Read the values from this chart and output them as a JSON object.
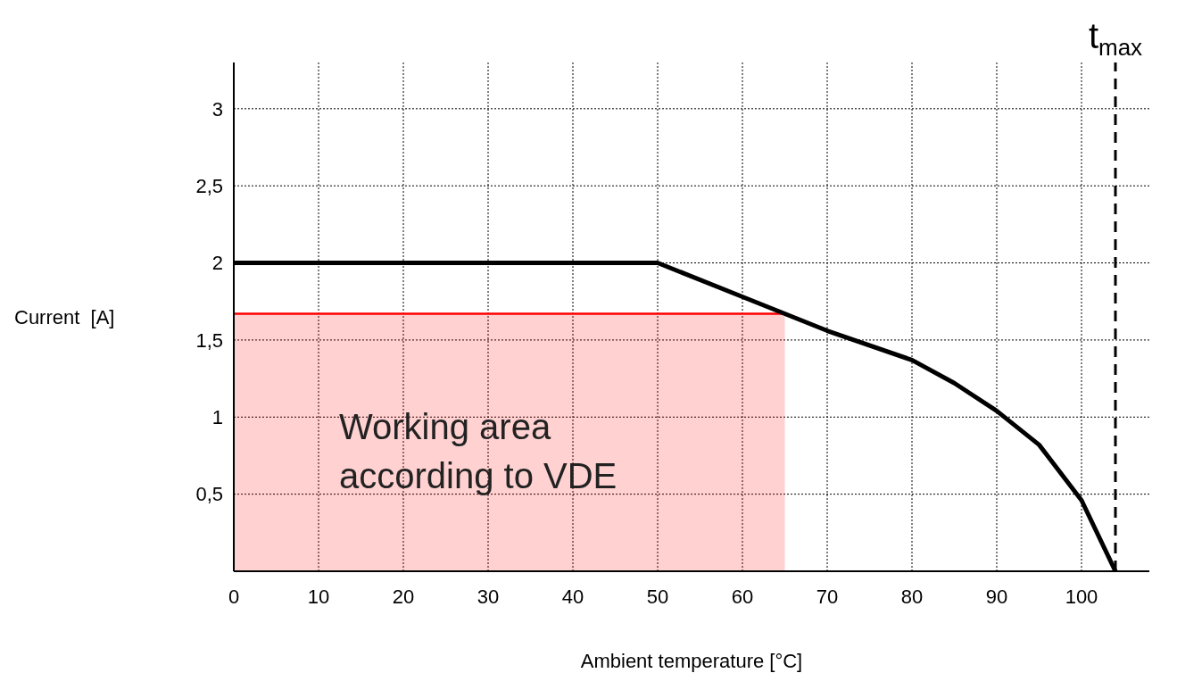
{
  "chart_data": {
    "type": "line",
    "xlabel": "Ambient temperature [°C]",
    "ylabel": "Current  [A]",
    "xlim": [
      0,
      108
    ],
    "ylim": [
      0,
      3.3
    ],
    "xticks": [
      0,
      10,
      20,
      30,
      40,
      50,
      60,
      70,
      80,
      90,
      100
    ],
    "yticks": [
      {
        "value": 0.5,
        "label": "0,5"
      },
      1,
      {
        "value": 1.5,
        "label": "1,5"
      },
      2,
      {
        "value": 2.5,
        "label": "2,5"
      },
      3
    ],
    "grid": true,
    "legend": false,
    "series": [
      {
        "type": "area",
        "name": "Working area according to VDE",
        "color": "#ff0000",
        "x": [
          0,
          65
        ],
        "values": [
          1.67,
          1.67
        ]
      },
      {
        "color": "#000000",
        "x": [
          0,
          50,
          60,
          65,
          70,
          80,
          85,
          90,
          95,
          100,
          104
        ],
        "values": [
          2,
          2,
          1.78,
          1.67,
          1.56,
          1.37,
          1.22,
          1.04,
          0.82,
          0.46,
          0
        ]
      }
    ],
    "ref_lines": [
      {
        "axis": "x",
        "value": 104,
        "label": "t$_{max}$",
        "line_style": "dashed",
        "color": "#000000"
      }
    ]
  }
}
